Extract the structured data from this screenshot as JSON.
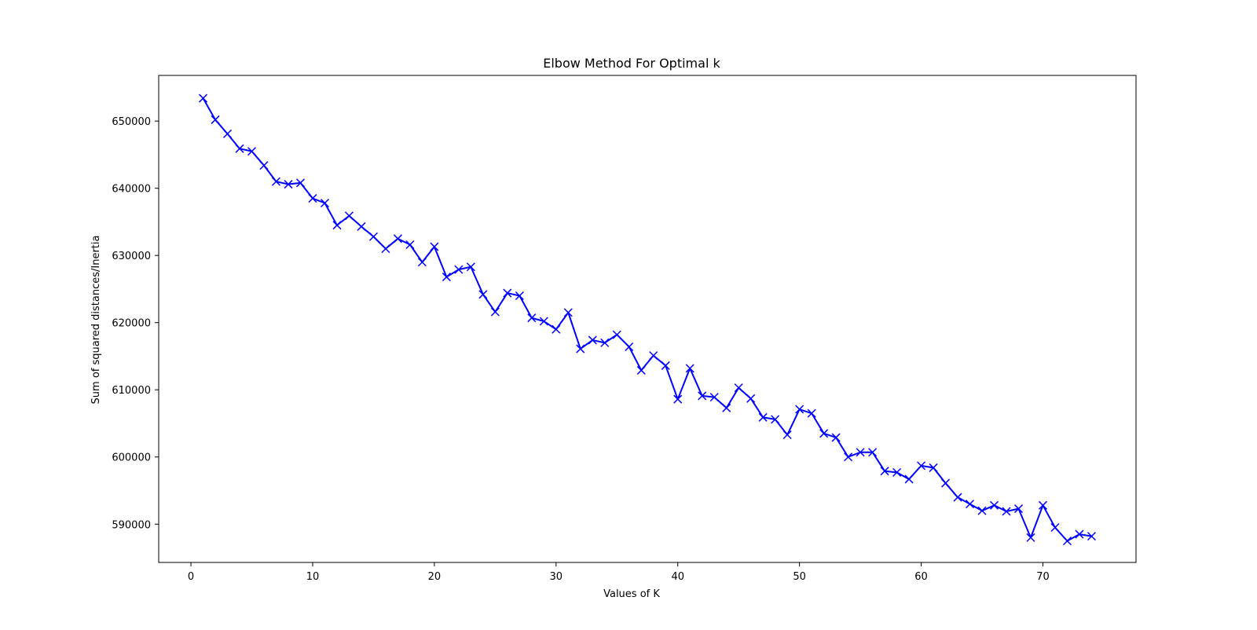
{
  "chart_data": {
    "type": "line",
    "title": "Elbow Method For Optimal k",
    "xlabel": "Values of K",
    "ylabel": "Sum of squared distances/Inertia",
    "xlim": [
      -2.65,
      77.65
    ],
    "ylim": [
      584300,
      656800
    ],
    "grid": false,
    "xticks": [
      0,
      10,
      20,
      30,
      40,
      50,
      60,
      70
    ],
    "yticks": [
      590000,
      600000,
      610000,
      620000,
      630000,
      640000,
      650000
    ],
    "colors": {
      "line": "#0000ff",
      "axes": "#000000",
      "background": "#ffffff"
    },
    "marker": "x",
    "series": [
      {
        "x": [
          1,
          2,
          3,
          4,
          5,
          6,
          7,
          8,
          9,
          10,
          11,
          12,
          13,
          14,
          15,
          16,
          17,
          18,
          19,
          20,
          21,
          22,
          23,
          24,
          25,
          26,
          27,
          28,
          29,
          30,
          31,
          32,
          33,
          34,
          35,
          36,
          37,
          38,
          39,
          40,
          41,
          42,
          43,
          44,
          45,
          46,
          47,
          48,
          49,
          50,
          51,
          52,
          53,
          54,
          55,
          56,
          57,
          58,
          59,
          60,
          61,
          62,
          63,
          64,
          65,
          66,
          67,
          68,
          69,
          70,
          71,
          72,
          73,
          74
        ],
        "y": [
          653400,
          650200,
          648100,
          645900,
          645500,
          643400,
          641000,
          640600,
          640800,
          638500,
          637800,
          634500,
          635900,
          634300,
          632800,
          631000,
          632500,
          631600,
          629000,
          631300,
          626800,
          627900,
          628300,
          624200,
          621600,
          624400,
          624000,
          620700,
          620200,
          619000,
          621500,
          616100,
          617400,
          617000,
          618200,
          616400,
          612900,
          615100,
          613600,
          608600,
          613200,
          609100,
          608900,
          607300,
          610300,
          608700,
          605900,
          605600,
          603300,
          607100,
          606500,
          603500,
          602900,
          600000,
          600700,
          600700,
          597900,
          597700,
          596700,
          598700,
          598400,
          596100,
          594000,
          593000,
          592000,
          592800,
          591900,
          592300,
          588000,
          592800,
          589500,
          587500,
          588500,
          588200
        ]
      }
    ]
  }
}
